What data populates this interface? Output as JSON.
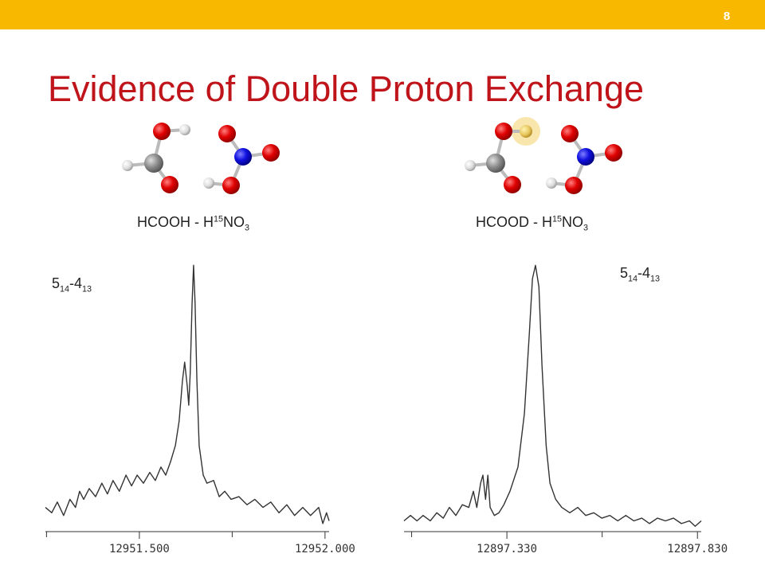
{
  "slide": {
    "number": "8",
    "title": "Evidence of Double Proton Exchange"
  },
  "molecules": [
    {
      "label_parts": [
        "HCOOH - H",
        "15",
        "NO",
        "3"
      ]
    },
    {
      "label_parts": [
        "HCOOD - H",
        "15",
        "NO",
        "3"
      ]
    }
  ],
  "chart_data": [
    {
      "type": "line",
      "annotation_parts": [
        "5",
        "14",
        "-4",
        "13"
      ],
      "x": [
        12951.247,
        12951.264,
        12951.279,
        12951.296,
        12951.313,
        12951.328,
        12951.339,
        12951.35,
        12951.365,
        12951.382,
        12951.399,
        12951.414,
        12951.429,
        12951.446,
        12951.464,
        12951.479,
        12951.494,
        12951.511,
        12951.528,
        12951.543,
        12951.558,
        12951.571,
        12951.584,
        12951.597,
        12951.607,
        12951.616,
        12951.622,
        12951.629,
        12951.633,
        12951.637,
        12951.642,
        12951.646,
        12951.65,
        12951.655,
        12951.661,
        12951.672,
        12951.682,
        12951.7,
        12951.715,
        12951.73,
        12951.747,
        12951.768,
        12951.79,
        12951.811,
        12951.833,
        12951.854,
        12951.876,
        12951.897,
        12951.918,
        12951.94,
        12951.961,
        12951.983,
        12951.994,
        12952.004,
        12952.011
      ],
      "series": [
        {
          "color": "#333333",
          "values": [
            9,
            7,
            11,
            6,
            12,
            9,
            15,
            12,
            16,
            13,
            18,
            14,
            19,
            15,
            21,
            17,
            21,
            18,
            22,
            19,
            24,
            21,
            26,
            32,
            41,
            56,
            63,
            54,
            47,
            59,
            85,
            99,
            85,
            56,
            32,
            21,
            18,
            19,
            13,
            15,
            12,
            13,
            10,
            12,
            9,
            11,
            7,
            10,
            6,
            9,
            6,
            9,
            3,
            7,
            4
          ]
        }
      ],
      "xlim": [
        12951.247,
        12952.011
      ],
      "xticks": [
        {
          "value": 12951.5,
          "label": "12951.500"
        },
        {
          "value": 12952.0,
          "label": "12952.000"
        }
      ],
      "xminor_ticks": [
        12951.25,
        12951.75
      ],
      "ylim": [
        0,
        100
      ]
    },
    {
      "type": "line",
      "annotation_parts": [
        "5",
        "14",
        "-4",
        "13"
      ],
      "x": [
        12897.06,
        12897.077,
        12897.094,
        12897.11,
        12897.129,
        12897.146,
        12897.163,
        12897.179,
        12897.196,
        12897.213,
        12897.23,
        12897.242,
        12897.251,
        12897.261,
        12897.267,
        12897.274,
        12897.28,
        12897.286,
        12897.297,
        12897.309,
        12897.322,
        12897.338,
        12897.359,
        12897.376,
        12897.389,
        12897.397,
        12897.405,
        12897.414,
        12897.422,
        12897.433,
        12897.443,
        12897.458,
        12897.474,
        12897.495,
        12897.516,
        12897.537,
        12897.558,
        12897.579,
        12897.6,
        12897.621,
        12897.642,
        12897.663,
        12897.684,
        12897.704,
        12897.725,
        12897.746,
        12897.767,
        12897.788,
        12897.809,
        12897.824,
        12897.84
      ],
      "series": [
        {
          "color": "#333333",
          "values": [
            4,
            6,
            4,
            6,
            4,
            7,
            5,
            9,
            6,
            10,
            9,
            15,
            9,
            18,
            21,
            12,
            21,
            9,
            6,
            7,
            10,
            15,
            24,
            44,
            74,
            94,
            99,
            91,
            62,
            32,
            18,
            12,
            9,
            7,
            9,
            6,
            7,
            5,
            6,
            4,
            6,
            4,
            5,
            3,
            5,
            4,
            5,
            3,
            4,
            2,
            4
          ]
        }
      ],
      "xlim": [
        12897.06,
        12897.84
      ],
      "xticks": [
        {
          "value": 12897.33,
          "label": "12897.330"
        },
        {
          "value": 12897.83,
          "label": "12897.830"
        }
      ],
      "xminor_ticks": [
        12897.08,
        12897.58
      ],
      "ylim": [
        0,
        100
      ]
    }
  ]
}
